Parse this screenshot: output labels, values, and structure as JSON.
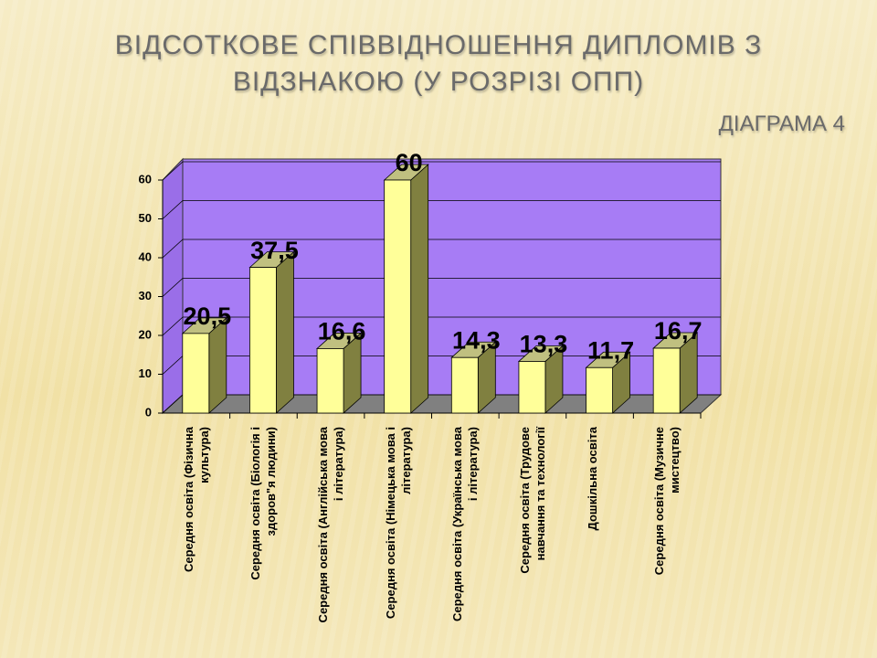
{
  "chart_data": {
    "type": "bar3d",
    "title": "ВІДСОТКОВЕ СПІВВІДНОШЕННЯ ДИПЛОМІВ З ВІДЗНАКОЮ (У РОЗРІЗІ ОПП)",
    "subtitle": "ДІАГРАМА 4",
    "categories": [
      "Середня освіта (Фізична культура)",
      "Середня освіта (Біологія і здоров\"я людини)",
      "Середня освіта (Англійська мова і література)",
      "Середня освіта (Німецька мова і література)",
      "Середня освіта (Українська мова і література)",
      "Середня освіта (Трудове навчання та технології",
      "Дошкільна освіта",
      "Середня освіта (Музичне мистецтво)"
    ],
    "values": [
      20.5,
      37.5,
      16.6,
      60,
      14.3,
      13.3,
      11.7,
      16.7
    ],
    "value_labels": [
      "20,5",
      "37,5",
      "16,6",
      "60",
      "14,3",
      "13,3",
      "11,7",
      "16,7"
    ],
    "color": "#ffff99",
    "ylim": [
      0,
      60
    ],
    "yticks": [
      0,
      10,
      20,
      30,
      40,
      50,
      60
    ],
    "grid": true
  }
}
